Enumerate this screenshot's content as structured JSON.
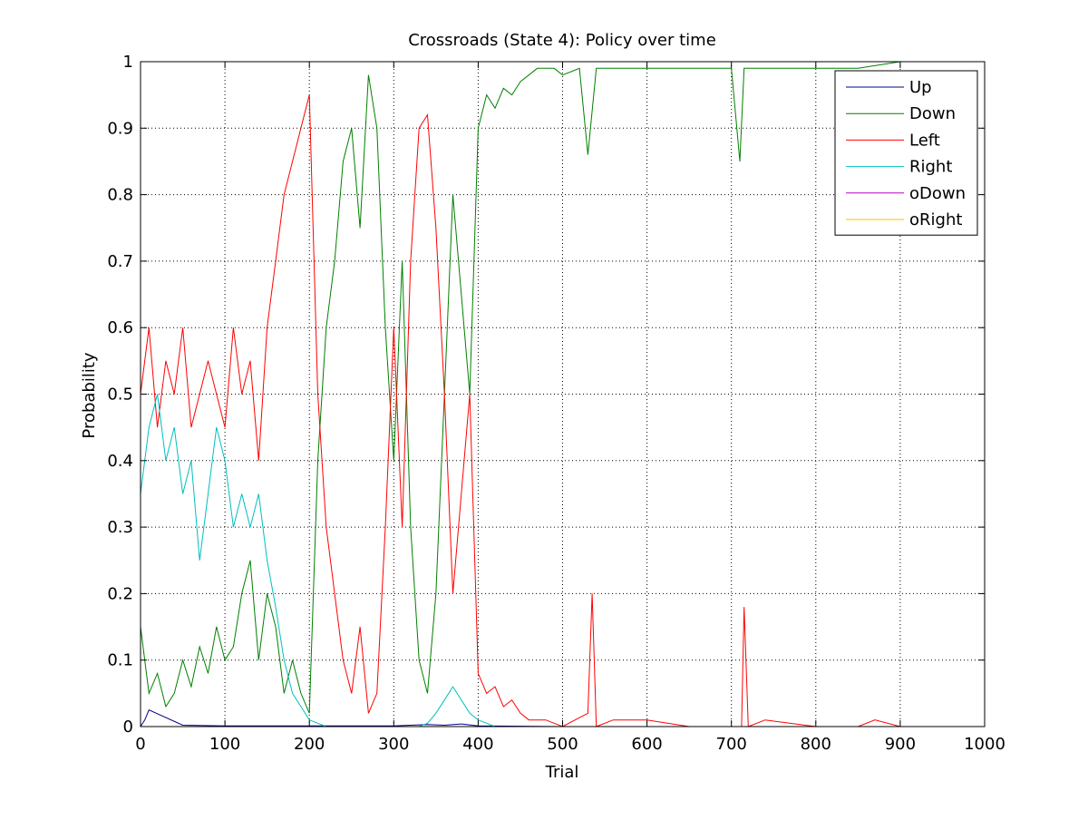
{
  "chart_data": {
    "type": "line",
    "title": "Crossroads (State 4): Policy over time",
    "xlabel": "Trial",
    "ylabel": "Probability",
    "xlim": [
      0,
      1000
    ],
    "ylim": [
      0,
      1
    ],
    "xticks": [
      0,
      100,
      200,
      300,
      400,
      500,
      600,
      700,
      800,
      900,
      1000
    ],
    "xtick_labels": [
      "0",
      "100",
      "200",
      "300",
      "400",
      "500",
      "600",
      "700",
      "800",
      "900",
      "1000"
    ],
    "yticks": [
      0,
      0.1,
      0.2,
      0.3,
      0.4,
      0.5,
      0.6,
      0.7,
      0.8,
      0.9,
      1
    ],
    "ytick_labels": [
      "0",
      "0.1",
      "0.2",
      "0.3",
      "0.4",
      "0.5",
      "0.6",
      "0.7",
      "0.8",
      "0.9",
      "1"
    ],
    "grid": true,
    "legend_position": "top-right",
    "series": [
      {
        "name": "Up",
        "color": "#00008b",
        "x": [
          0,
          5,
          10,
          50,
          100,
          200,
          300,
          340,
          360,
          380,
          400,
          500,
          1000
        ],
        "y": [
          0.0,
          0.01,
          0.025,
          0.002,
          0.001,
          0.001,
          0.001,
          0.003,
          0.002,
          0.004,
          0.001,
          0.0,
          0.0
        ]
      },
      {
        "name": "Down",
        "color": "#008000",
        "x": [
          0,
          10,
          20,
          30,
          40,
          50,
          60,
          70,
          80,
          90,
          100,
          110,
          120,
          130,
          140,
          150,
          160,
          170,
          180,
          190,
          200,
          210,
          220,
          230,
          240,
          250,
          260,
          270,
          280,
          290,
          300,
          310,
          320,
          330,
          340,
          350,
          360,
          370,
          380,
          390,
          400,
          410,
          420,
          430,
          440,
          450,
          460,
          470,
          480,
          490,
          500,
          520,
          530,
          540,
          560,
          600,
          650,
          700,
          710,
          715,
          720,
          750,
          800,
          850,
          900,
          950,
          1000
        ],
        "y": [
          0.15,
          0.05,
          0.08,
          0.03,
          0.05,
          0.1,
          0.06,
          0.12,
          0.08,
          0.15,
          0.1,
          0.12,
          0.2,
          0.25,
          0.1,
          0.2,
          0.15,
          0.05,
          0.1,
          0.05,
          0.02,
          0.4,
          0.6,
          0.7,
          0.85,
          0.9,
          0.75,
          0.98,
          0.9,
          0.6,
          0.4,
          0.7,
          0.3,
          0.1,
          0.05,
          0.2,
          0.5,
          0.8,
          0.65,
          0.5,
          0.9,
          0.95,
          0.93,
          0.96,
          0.95,
          0.97,
          0.98,
          0.99,
          0.99,
          0.99,
          0.98,
          0.99,
          0.86,
          0.99,
          0.99,
          0.99,
          0.99,
          0.99,
          0.85,
          0.99,
          0.99,
          0.99,
          0.99,
          0.99,
          1.0,
          1.0,
          1.0
        ]
      },
      {
        "name": "Left",
        "color": "#ff0000",
        "x": [
          0,
          10,
          20,
          30,
          40,
          50,
          60,
          70,
          80,
          90,
          100,
          110,
          120,
          130,
          140,
          150,
          160,
          170,
          180,
          190,
          200,
          210,
          220,
          230,
          240,
          250,
          260,
          270,
          280,
          290,
          300,
          310,
          320,
          330,
          340,
          350,
          360,
          370,
          380,
          390,
          400,
          410,
          420,
          430,
          440,
          450,
          460,
          470,
          480,
          500,
          530,
          535,
          540,
          560,
          600,
          650,
          700,
          712,
          715,
          720,
          740,
          800,
          850,
          870,
          900,
          950,
          1000
        ],
        "y": [
          0.5,
          0.6,
          0.45,
          0.55,
          0.5,
          0.6,
          0.45,
          0.5,
          0.55,
          0.5,
          0.45,
          0.6,
          0.5,
          0.55,
          0.4,
          0.6,
          0.7,
          0.8,
          0.85,
          0.9,
          0.95,
          0.5,
          0.3,
          0.2,
          0.1,
          0.05,
          0.15,
          0.02,
          0.05,
          0.3,
          0.6,
          0.3,
          0.7,
          0.9,
          0.92,
          0.75,
          0.5,
          0.2,
          0.35,
          0.5,
          0.08,
          0.05,
          0.06,
          0.03,
          0.04,
          0.02,
          0.01,
          0.01,
          0.01,
          0.0,
          0.02,
          0.2,
          0.0,
          0.01,
          0.01,
          0.0,
          0.0,
          0.0,
          0.18,
          0.0,
          0.01,
          0.0,
          0.0,
          0.01,
          0.0,
          0.0,
          0.0
        ]
      },
      {
        "name": "Right",
        "color": "#00bfbf",
        "x": [
          0,
          10,
          20,
          30,
          40,
          50,
          60,
          70,
          80,
          90,
          100,
          110,
          120,
          130,
          140,
          150,
          160,
          170,
          180,
          190,
          200,
          210,
          220,
          250,
          300,
          330,
          340,
          350,
          360,
          370,
          380,
          390,
          400,
          410,
          420,
          500,
          1000
        ],
        "y": [
          0.35,
          0.45,
          0.5,
          0.4,
          0.45,
          0.35,
          0.4,
          0.25,
          0.35,
          0.45,
          0.4,
          0.3,
          0.35,
          0.3,
          0.35,
          0.25,
          0.18,
          0.1,
          0.05,
          0.03,
          0.01,
          0.005,
          0.0,
          0.0,
          0.0,
          0.0,
          0.005,
          0.02,
          0.04,
          0.06,
          0.04,
          0.02,
          0.01,
          0.005,
          0.0,
          0.0,
          0.0
        ]
      },
      {
        "name": "oDown",
        "color": "#bf00bf",
        "x": [
          0,
          1000
        ],
        "y": [
          0.0,
          0.0
        ]
      },
      {
        "name": "oRight",
        "color": "#ffbf00",
        "x": [
          0,
          1000
        ],
        "y": [
          0.0,
          0.0
        ]
      }
    ]
  }
}
